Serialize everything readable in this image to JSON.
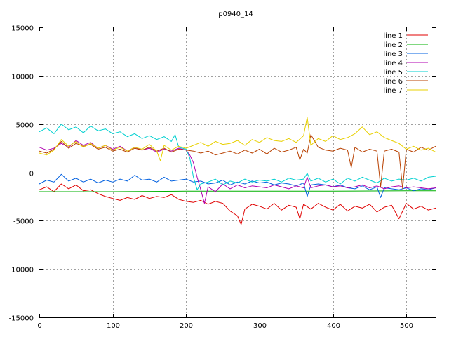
{
  "chart_data": {
    "type": "line",
    "title": "p0940_14",
    "xlabel": "",
    "ylabel": "",
    "xlim": [
      0,
      540
    ],
    "ylim": [
      -15000,
      15000
    ],
    "x_ticks": [
      0,
      100,
      200,
      300,
      400,
      500
    ],
    "y_ticks": [
      -15000,
      -10000,
      -5000,
      0,
      5000,
      10000,
      15000
    ],
    "x_tick_labels": [
      "0",
      "100",
      "200",
      "300",
      "400",
      "500"
    ],
    "y_tick_labels": [
      "-15000",
      "-10000",
      "-5000",
      "0",
      "5000",
      "10000",
      "15000"
    ],
    "grid": true,
    "legend_position": "top-right",
    "series": [
      {
        "name": "line 1",
        "color": "#e00000",
        "x": [
          0,
          10,
          20,
          30,
          40,
          50,
          60,
          70,
          80,
          90,
          100,
          110,
          120,
          130,
          140,
          150,
          160,
          170,
          180,
          190,
          200,
          210,
          220,
          230,
          240,
          250,
          260,
          270,
          275,
          280,
          290,
          300,
          310,
          320,
          330,
          340,
          350,
          355,
          360,
          370,
          380,
          390,
          400,
          410,
          420,
          430,
          440,
          450,
          460,
          470,
          480,
          490,
          500,
          510,
          520,
          530,
          540
        ],
        "y": [
          -1800,
          -1500,
          -2000,
          -1200,
          -1700,
          -1300,
          -1900,
          -1800,
          -2200,
          -2500,
          -2700,
          -2900,
          -2600,
          -2800,
          -2400,
          -2700,
          -2500,
          -2600,
          -2300,
          -2800,
          -3000,
          -3100,
          -2900,
          -3300,
          -3000,
          -3200,
          -4000,
          -4500,
          -5400,
          -3800,
          -3300,
          -3500,
          -3800,
          -3200,
          -3900,
          -3400,
          -3600,
          -4800,
          -3300,
          -3800,
          -3200,
          -3600,
          -3900,
          -3300,
          -4000,
          -3500,
          -3700,
          -3300,
          -4100,
          -3600,
          -3400,
          -4800,
          -3200,
          -3800,
          -3500,
          -3900,
          -3700
        ]
      },
      {
        "name": "line 2",
        "color": "#00b000",
        "x": [
          0,
          100,
          200,
          300,
          400,
          500,
          540
        ],
        "y": [
          -2000,
          -2000,
          -1950,
          -1950,
          -1950,
          -1900,
          -1900
        ]
      },
      {
        "name": "line 3",
        "color": "#0060e0",
        "x": [
          0,
          10,
          20,
          30,
          40,
          50,
          60,
          70,
          80,
          90,
          100,
          110,
          120,
          130,
          140,
          150,
          160,
          170,
          180,
          190,
          200,
          210,
          220,
          230,
          240,
          250,
          260,
          270,
          280,
          290,
          300,
          310,
          320,
          330,
          340,
          350,
          360,
          365,
          370,
          380,
          390,
          400,
          410,
          420,
          430,
          440,
          450,
          460,
          465,
          470,
          480,
          490,
          500,
          510,
          520,
          530,
          540
        ],
        "y": [
          -1200,
          -800,
          -1000,
          -200,
          -900,
          -600,
          -1000,
          -700,
          -1100,
          -800,
          -1000,
          -700,
          -900,
          -300,
          -800,
          -700,
          -1000,
          -500,
          -900,
          -800,
          -700,
          -1000,
          -900,
          -1200,
          -1100,
          -800,
          -1300,
          -1000,
          -1200,
          -900,
          -1100,
          -1000,
          -1300,
          -1100,
          -1200,
          -1400,
          -1100,
          -2500,
          -1300,
          -1200,
          -1300,
          -1500,
          -1300,
          -1600,
          -1700,
          -1400,
          -1800,
          -1500,
          -2600,
          -1600,
          -1700,
          -1800,
          -1600,
          -1900,
          -1700,
          -1800,
          -1600
        ]
      },
      {
        "name": "line 4",
        "color": "#b000b0",
        "x": [
          0,
          10,
          20,
          30,
          40,
          50,
          60,
          70,
          80,
          90,
          100,
          110,
          120,
          130,
          140,
          150,
          160,
          170,
          180,
          190,
          200,
          205,
          210,
          215,
          220,
          225,
          230,
          240,
          250,
          260,
          270,
          280,
          290,
          300,
          310,
          320,
          330,
          340,
          350,
          360,
          365,
          370,
          380,
          390,
          400,
          410,
          420,
          430,
          440,
          450,
          460,
          470,
          480,
          490,
          500,
          510,
          520,
          530,
          540
        ],
        "y": [
          2600,
          2300,
          2500,
          3000,
          2600,
          3300,
          2800,
          3100,
          2500,
          2800,
          2400,
          2700,
          2200,
          2600,
          2300,
          2500,
          2100,
          2400,
          2200,
          2500,
          2300,
          1800,
          1000,
          -500,
          -1800,
          -3200,
          -1500,
          -2000,
          -1200,
          -1700,
          -1300,
          -1600,
          -1400,
          -1500,
          -1600,
          -1300,
          -1500,
          -1700,
          -1400,
          -1600,
          -500,
          -1600,
          -1400,
          -1300,
          -1500,
          -1400,
          -1600,
          -1500,
          -1300,
          -1600,
          -1400,
          -1700,
          -1500,
          -1400,
          -1600,
          -1500,
          -1600,
          -1700,
          -1600
        ]
      },
      {
        "name": "line 5",
        "color": "#00d0d0",
        "x": [
          0,
          10,
          20,
          30,
          40,
          50,
          60,
          70,
          80,
          90,
          100,
          110,
          120,
          130,
          140,
          150,
          160,
          170,
          180,
          185,
          190,
          200,
          205,
          210,
          215,
          220,
          230,
          240,
          250,
          260,
          270,
          280,
          290,
          300,
          310,
          320,
          330,
          340,
          350,
          360,
          365,
          370,
          380,
          390,
          400,
          410,
          420,
          430,
          440,
          450,
          460,
          470,
          480,
          490,
          500,
          510,
          520,
          530,
          540
        ],
        "y": [
          4200,
          4600,
          4000,
          5000,
          4400,
          4700,
          4100,
          4800,
          4300,
          4500,
          4000,
          4200,
          3700,
          4000,
          3500,
          3800,
          3400,
          3700,
          3200,
          3900,
          2600,
          2400,
          1500,
          -500,
          -1800,
          -1200,
          -1000,
          -700,
          -1300,
          -900,
          -1100,
          -700,
          -1000,
          -800,
          -900,
          -700,
          -1000,
          -600,
          -800,
          -700,
          -100,
          -900,
          -600,
          -1000,
          -700,
          -1200,
          -600,
          -900,
          -500,
          -800,
          -1100,
          -600,
          -900,
          -700,
          -800,
          -600,
          -900,
          -500,
          -400
        ]
      },
      {
        "name": "line 6",
        "color": "#b84000",
        "x": [
          0,
          10,
          20,
          30,
          40,
          50,
          60,
          70,
          80,
          90,
          100,
          110,
          120,
          130,
          140,
          150,
          160,
          170,
          180,
          190,
          200,
          210,
          220,
          230,
          240,
          250,
          260,
          270,
          280,
          290,
          300,
          310,
          320,
          330,
          340,
          350,
          355,
          360,
          365,
          370,
          380,
          390,
          400,
          410,
          420,
          425,
          430,
          440,
          450,
          460,
          465,
          470,
          480,
          490,
          495,
          500,
          510,
          520,
          530,
          540
        ],
        "y": [
          2200,
          2000,
          2400,
          3200,
          2500,
          3000,
          2700,
          2900,
          2400,
          2600,
          2200,
          2400,
          2100,
          2500,
          2300,
          2600,
          2200,
          2500,
          2100,
          2400,
          2300,
          2200,
          2000,
          2200,
          1800,
          2000,
          2200,
          1900,
          2300,
          2000,
          2400,
          1900,
          2500,
          2100,
          2300,
          2600,
          1300,
          2400,
          2000,
          3900,
          2600,
          2300,
          2200,
          2500,
          2300,
          500,
          2600,
          2100,
          2400,
          2200,
          -1500,
          2200,
          2400,
          2100,
          -1700,
          2400,
          2100,
          2600,
          2300,
          2700
        ]
      },
      {
        "name": "line 7",
        "color": "#e8d000",
        "x": [
          0,
          10,
          20,
          30,
          40,
          50,
          60,
          70,
          80,
          90,
          100,
          110,
          120,
          130,
          140,
          150,
          160,
          165,
          170,
          180,
          190,
          200,
          210,
          220,
          230,
          240,
          250,
          260,
          270,
          280,
          290,
          300,
          310,
          320,
          330,
          340,
          350,
          360,
          365,
          370,
          380,
          390,
          400,
          410,
          420,
          430,
          440,
          450,
          460,
          470,
          480,
          490,
          500,
          510,
          520,
          530,
          540
        ],
        "y": [
          2000,
          1800,
          2300,
          3400,
          2700,
          3200,
          2600,
          3000,
          2500,
          2800,
          2300,
          2600,
          2200,
          2600,
          2400,
          2900,
          2200,
          1200,
          2800,
          2300,
          2700,
          2500,
          2800,
          3100,
          2700,
          3200,
          2900,
          3000,
          3300,
          2800,
          3400,
          3100,
          3600,
          3300,
          3200,
          3500,
          3100,
          3800,
          5700,
          2800,
          3500,
          3200,
          3800,
          3400,
          3600,
          4000,
          4700,
          3900,
          4200,
          3600,
          3300,
          3000,
          2400,
          2700,
          2300,
          2500,
          2100
        ]
      }
    ]
  }
}
